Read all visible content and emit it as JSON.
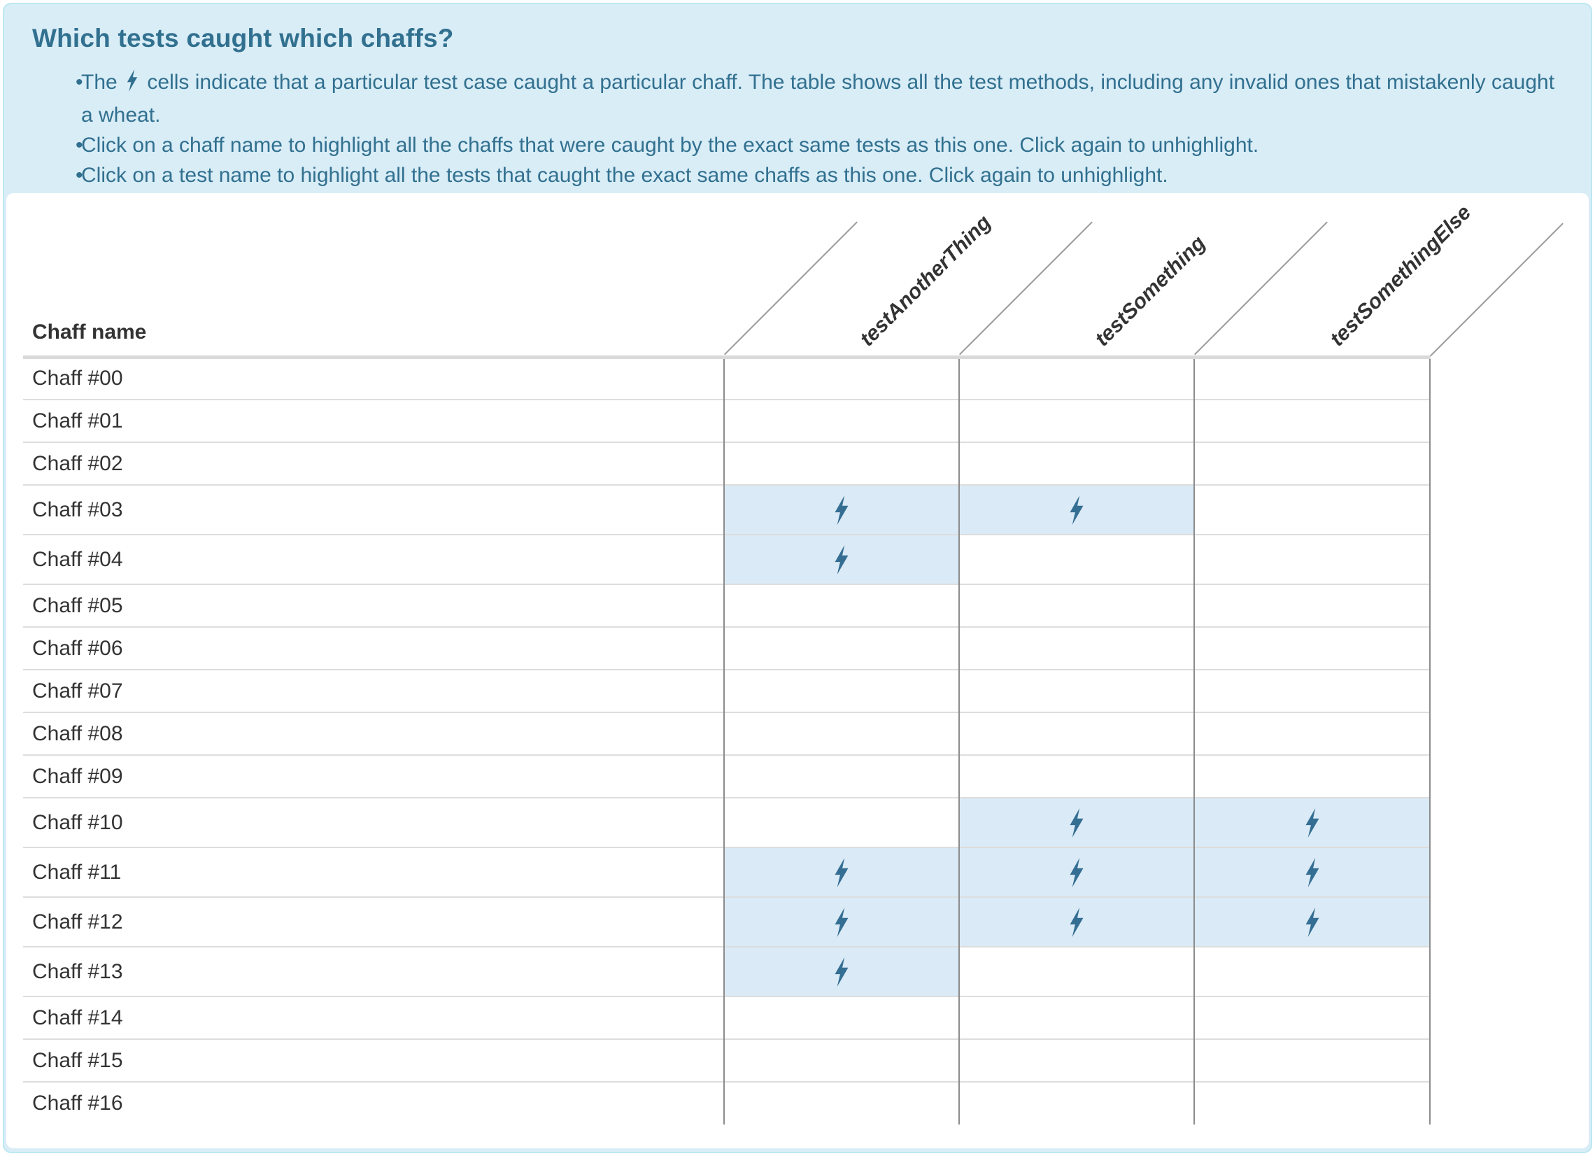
{
  "colors": {
    "info_bg": "#d9edf7",
    "info_border": "#bce8f1",
    "info_text": "#31708f",
    "bolt_blue": "#346e93",
    "cell_highlight": "#daeaf6",
    "table_text": "#333333",
    "grid_vertical": "#8c8c8c",
    "row_separator": "#dddddd"
  },
  "info_panel": {
    "title": "Which tests caught which chaffs?",
    "bullet_marker": "•",
    "bullets": [
      {
        "prefix": "The",
        "icon": "lightning-bolt",
        "suffix": "cells indicate that a particular test case caught a particular chaff. The table shows all the test methods, including any invalid ones that mistakenly caught a wheat."
      },
      {
        "text": "Click on a chaff name to highlight all the chaffs that were caught by the exact same tests as this one. Click again to unhighlight."
      },
      {
        "text": "Click on a test name to highlight all the tests that caught the exact same chaffs as this one. Click again to unhighlight."
      }
    ]
  },
  "table": {
    "row_header_label": "Chaff name",
    "tests": [
      "testAnotherThing",
      "testSomething",
      "testSomethingElse"
    ],
    "rows": [
      {
        "name": "Chaff #00",
        "caught_by": [
          false,
          false,
          false
        ]
      },
      {
        "name": "Chaff #01",
        "caught_by": [
          false,
          false,
          false
        ]
      },
      {
        "name": "Chaff #02",
        "caught_by": [
          false,
          false,
          false
        ]
      },
      {
        "name": "Chaff #03",
        "caught_by": [
          true,
          true,
          false
        ]
      },
      {
        "name": "Chaff #04",
        "caught_by": [
          true,
          false,
          false
        ]
      },
      {
        "name": "Chaff #05",
        "caught_by": [
          false,
          false,
          false
        ]
      },
      {
        "name": "Chaff #06",
        "caught_by": [
          false,
          false,
          false
        ]
      },
      {
        "name": "Chaff #07",
        "caught_by": [
          false,
          false,
          false
        ]
      },
      {
        "name": "Chaff #08",
        "caught_by": [
          false,
          false,
          false
        ]
      },
      {
        "name": "Chaff #09",
        "caught_by": [
          false,
          false,
          false
        ]
      },
      {
        "name": "Chaff #10",
        "caught_by": [
          false,
          true,
          true
        ]
      },
      {
        "name": "Chaff #11",
        "caught_by": [
          true,
          true,
          true
        ]
      },
      {
        "name": "Chaff #12",
        "caught_by": [
          true,
          true,
          true
        ]
      },
      {
        "name": "Chaff #13",
        "caught_by": [
          true,
          false,
          false
        ]
      },
      {
        "name": "Chaff #14",
        "caught_by": [
          false,
          false,
          false
        ]
      },
      {
        "name": "Chaff #15",
        "caught_by": [
          false,
          false,
          false
        ]
      },
      {
        "name": "Chaff #16",
        "caught_by": [
          false,
          false,
          false
        ]
      }
    ]
  }
}
